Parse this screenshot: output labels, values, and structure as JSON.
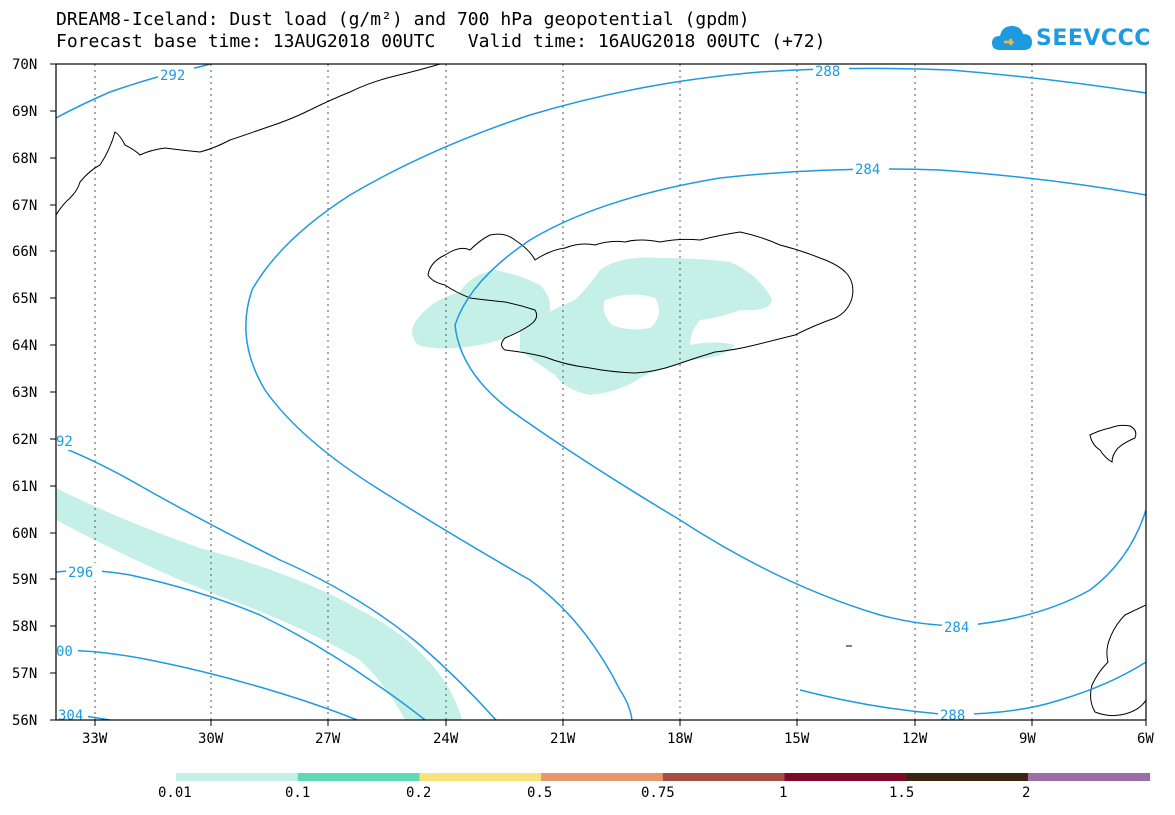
{
  "title_line1": "DREAM8-Iceland: Dust load (g/m²) and 700 hPa geopotential (gpdm)",
  "title_line2": "Forecast base time: 13AUG2018 00UTC   Valid time: 16AUG2018 00UTC (+72)",
  "logo_text": "SEEVCCC",
  "colors": {
    "contour": "#1e9ae0",
    "dust_fill": "#c5f0e8",
    "coast": "#000000",
    "grid": "#555555"
  },
  "lat_labels": [
    "70N",
    "69N",
    "68N",
    "67N",
    "66N",
    "65N",
    "64N",
    "63N",
    "62N",
    "61N",
    "60N",
    "59N",
    "58N",
    "57N",
    "56N"
  ],
  "lon_labels": [
    "33W",
    "30W",
    "27W",
    "24W",
    "21W",
    "18W",
    "15W",
    "12W",
    "9W",
    "6W"
  ],
  "contour_labels": [
    "292",
    "288",
    "284",
    "92",
    "296",
    "00",
    "284",
    "288",
    "304"
  ],
  "legend": {
    "colors": [
      "#c5f0e8",
      "#5ed9b2",
      "#f7e37a",
      "#e8966b",
      "#a64e3f",
      "#7d0a29",
      "#3a2412",
      "#9a6fa8"
    ],
    "labels": [
      "0.01",
      "0.1",
      "0.2",
      "0.5",
      "0.75",
      "1",
      "1.5",
      "2"
    ]
  }
}
